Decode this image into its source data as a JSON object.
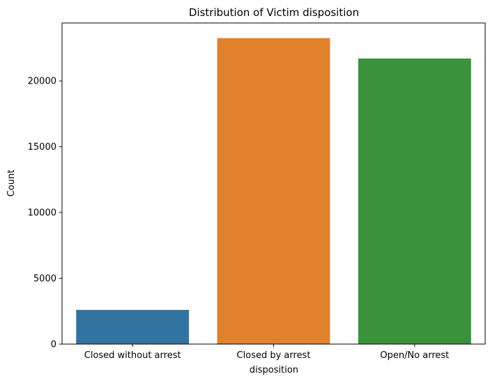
{
  "chart_data": {
    "type": "bar",
    "title": "Distribution of Victim disposition",
    "xlabel": "disposition",
    "ylabel": "Count",
    "categories": [
      "Closed without arrest",
      "Closed by arrest",
      "Open/No arrest"
    ],
    "values": [
      2600,
      23250,
      21700
    ],
    "colors": [
      "#3274a1",
      "#e1812c",
      "#3a923a"
    ],
    "ylim": [
      0,
      24400
    ],
    "yticks": [
      0,
      5000,
      10000,
      15000,
      20000
    ],
    "ytick_labels": [
      "0",
      "5000",
      "10000",
      "15000",
      "20000"
    ],
    "grid": false,
    "legend": "none"
  }
}
